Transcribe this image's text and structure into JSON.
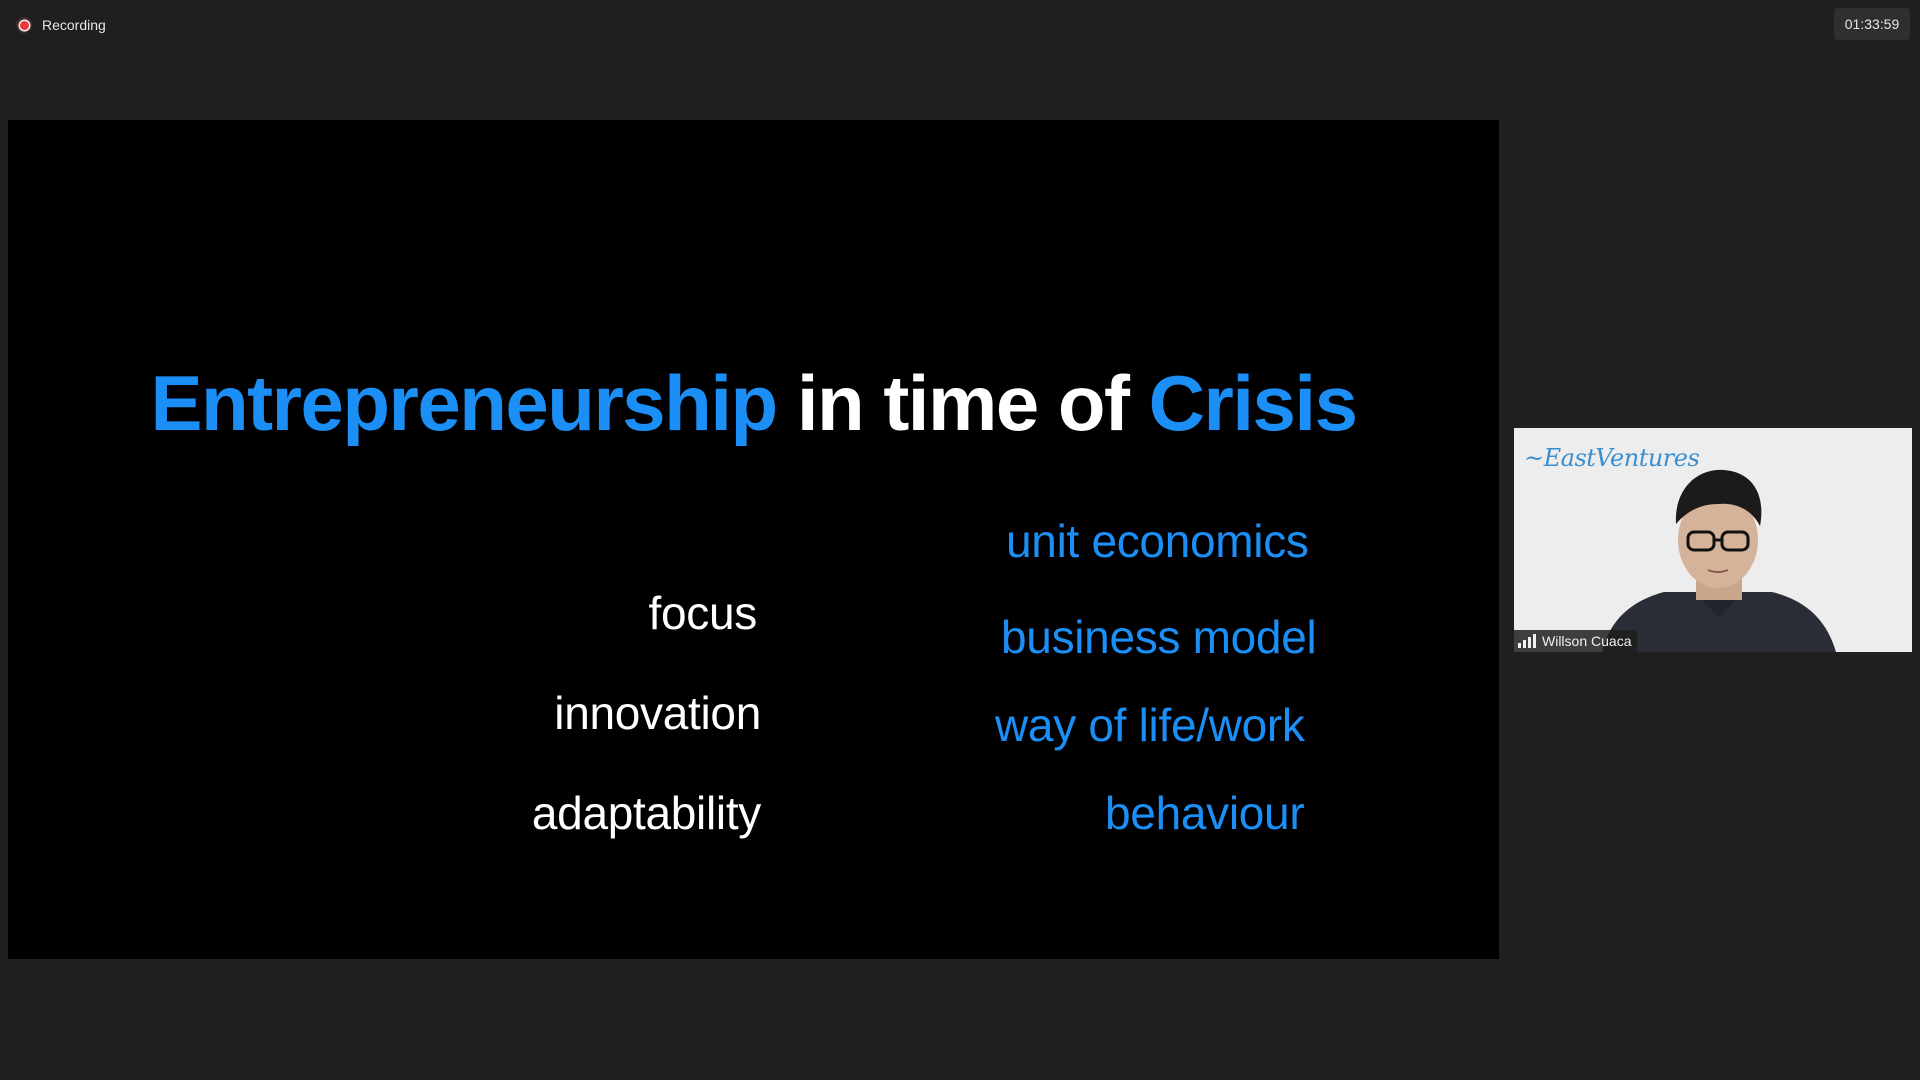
{
  "recording": {
    "label": "Recording"
  },
  "timer": {
    "value": "01:33:59"
  },
  "slide": {
    "title_part1": "Entrepreneurship",
    "title_part2": "in time of",
    "title_part3": "Crisis",
    "left_words": [
      "focus",
      "innovation",
      "adaptability"
    ],
    "right_words": [
      "unit economics",
      "business model",
      "way of life/work",
      "behaviour"
    ]
  },
  "participant": {
    "name": "Willson Cuaca",
    "background_logo_text": "EastVentures"
  },
  "colors": {
    "accent_blue": "#1b8ff5",
    "slide_background": "#000000",
    "app_background": "#1f1f1f"
  }
}
